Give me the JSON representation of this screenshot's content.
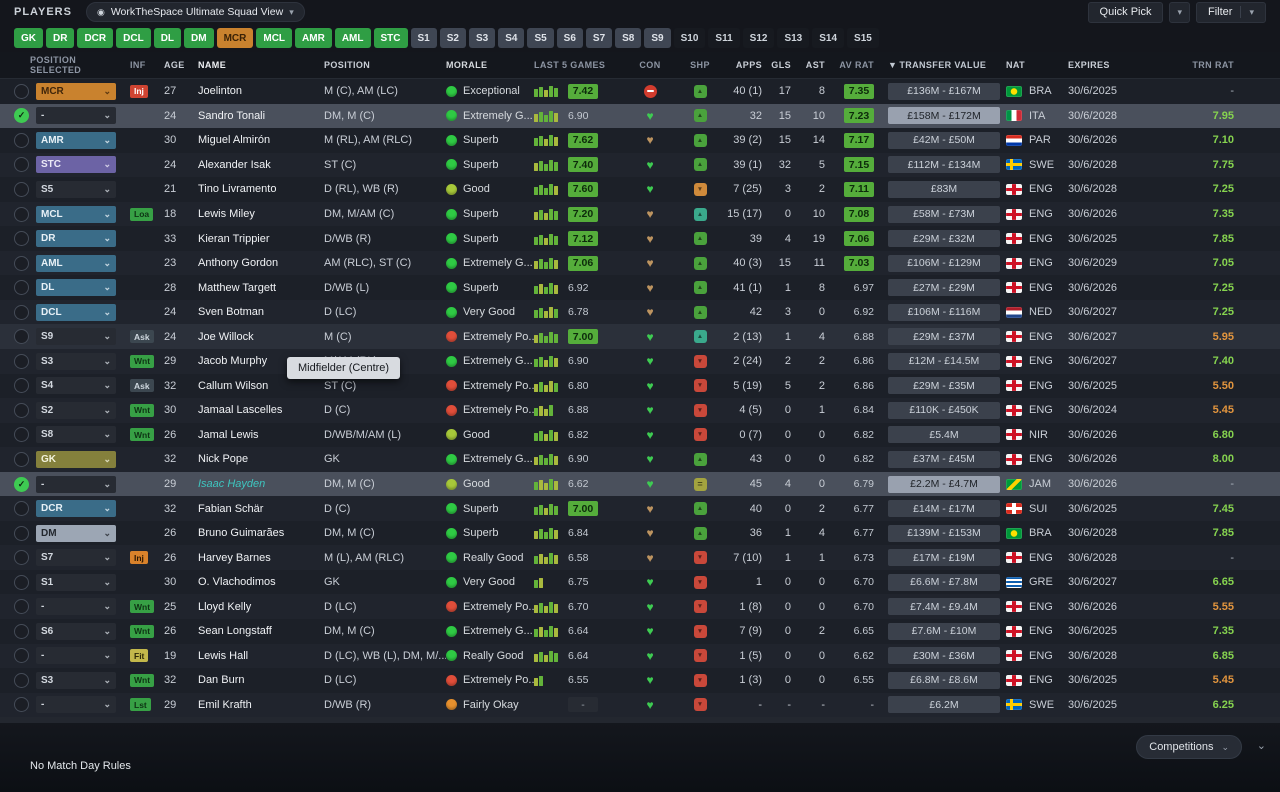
{
  "header": {
    "players_label": "PLAYERS",
    "view_name": "WorkTheSpace Ultimate Squad View",
    "quick_pick_label": "Quick Pick",
    "filter_label": "Filter"
  },
  "position_filters": [
    {
      "label": "GK",
      "style": "green"
    },
    {
      "label": "DR",
      "style": "green"
    },
    {
      "label": "DCR",
      "style": "green"
    },
    {
      "label": "DCL",
      "style": "green"
    },
    {
      "label": "DL",
      "style": "green"
    },
    {
      "label": "DM",
      "style": "green"
    },
    {
      "label": "MCR",
      "style": "active"
    },
    {
      "label": "MCL",
      "style": "green"
    },
    {
      "label": "AMR",
      "style": "green"
    },
    {
      "label": "AML",
      "style": "green"
    },
    {
      "label": "STC",
      "style": "green"
    },
    {
      "label": "S1",
      "style": "gray"
    },
    {
      "label": "S2",
      "style": "gray"
    },
    {
      "label": "S3",
      "style": "gray"
    },
    {
      "label": "S4",
      "style": "gray"
    },
    {
      "label": "S5",
      "style": "gray"
    },
    {
      "label": "S6",
      "style": "gray"
    },
    {
      "label": "S7",
      "style": "gray"
    },
    {
      "label": "S8",
      "style": "gray"
    },
    {
      "label": "S9",
      "style": "gray"
    },
    {
      "label": "S10",
      "style": "dark"
    },
    {
      "label": "S11",
      "style": "dark"
    },
    {
      "label": "S12",
      "style": "dark"
    },
    {
      "label": "S13",
      "style": "dark"
    },
    {
      "label": "S14",
      "style": "dark"
    },
    {
      "label": "S15",
      "style": "dark"
    }
  ],
  "table": {
    "sort_indicator": "▼",
    "columns": {
      "pos_selected": "POSITION SELECTED",
      "inf": "INF",
      "age": "AGE",
      "name": "NAME",
      "position": "POSITION",
      "morale": "MORALE",
      "last5": "LAST 5 GAMES",
      "con": "CON",
      "shp": "SHP",
      "apps": "APPS",
      "gls": "GLS",
      "ast": "AST",
      "avrat": "AV RAT",
      "value": "TRANSFER VALUE",
      "nat": "NAT",
      "expires": "EXPIRES",
      "trn": "TRN RAT"
    }
  },
  "tooltip": {
    "text": "Midfielder (Centre)"
  },
  "footer": {
    "left_text": "No Match Day Rules",
    "competitions_label": "Competitions"
  },
  "players": [
    {
      "sel": false,
      "slot": "MCR",
      "slotStyle": "orange",
      "inf": "Inj",
      "infStyle": "red",
      "age": "27",
      "name": "Joelinton",
      "nameStyle": "",
      "pos": "M (C), AM (LC)",
      "morale": "Exceptional",
      "moraleColor": "green",
      "bars": "ggygg",
      "rating": "7.42",
      "ratingStyle": "badge",
      "con": "injured",
      "shp": "upg",
      "apps": "40 (1)",
      "gls": "17",
      "ast": "8",
      "av": "7.35",
      "avStyle": "badge",
      "value": "£136M - £167M",
      "nat": "BRA",
      "expires": "30/6/2025",
      "trn": "-",
      "trnStyle": "dash",
      "row": "normal"
    },
    {
      "sel": true,
      "slot": "-",
      "slotStyle": "dark",
      "inf": "",
      "infStyle": "",
      "age": "24",
      "name": "Sandro Tonali",
      "nameStyle": "",
      "pos": "DM, M (C)",
      "morale": "Extremely G...",
      "moraleColor": "green",
      "bars": "ygggy",
      "rating": "6.90",
      "ratingStyle": "plain",
      "con": "green",
      "shp": "upg",
      "apps": "32",
      "gls": "15",
      "ast": "10",
      "av": "7.23",
      "avStyle": "badge",
      "value": "£158M - £172M",
      "nat": "ITA",
      "expires": "30/6/2028",
      "trn": "7.95",
      "trnStyle": "good",
      "row": "selected"
    },
    {
      "sel": false,
      "slot": "AMR",
      "slotStyle": "blue",
      "inf": "",
      "infStyle": "",
      "age": "30",
      "name": "Miguel Almirón",
      "nameStyle": "",
      "pos": "M (RL), AM (RLC)",
      "morale": "Superb",
      "moraleColor": "green",
      "bars": "ggygy",
      "rating": "7.62",
      "ratingStyle": "badge",
      "con": "bronze",
      "shp": "upg",
      "apps": "39 (2)",
      "gls": "15",
      "ast": "14",
      "av": "7.17",
      "avStyle": "badge",
      "value": "£42M - £50M",
      "nat": "PAR",
      "expires": "30/6/2026",
      "trn": "7.10",
      "trnStyle": "good",
      "row": "normal"
    },
    {
      "sel": false,
      "slot": "STC",
      "slotStyle": "purple",
      "inf": "",
      "infStyle": "",
      "age": "24",
      "name": "Alexander Isak",
      "nameStyle": "",
      "pos": "ST (C)",
      "morale": "Superb",
      "moraleColor": "green",
      "bars": "ygggg",
      "rating": "7.40",
      "ratingStyle": "badge",
      "con": "green",
      "shp": "upg",
      "apps": "39 (1)",
      "gls": "32",
      "ast": "5",
      "av": "7.15",
      "avStyle": "badge",
      "value": "£112M - £134M",
      "nat": "SWE",
      "expires": "30/6/2028",
      "trn": "7.75",
      "trnStyle": "good",
      "row": "normal"
    },
    {
      "sel": false,
      "slot": "S5",
      "slotStyle": "dark",
      "inf": "",
      "infStyle": "",
      "age": "21",
      "name": "Tino Livramento",
      "nameStyle": "",
      "pos": "D (RL), WB (R)",
      "morale": "Good",
      "moraleColor": "yellowgreen",
      "bars": "ggggy",
      "rating": "7.60",
      "ratingStyle": "badge",
      "con": "green",
      "shp": "dno",
      "apps": "7 (25)",
      "gls": "3",
      "ast": "2",
      "av": "7.11",
      "avStyle": "badge",
      "value": "£83M",
      "nat": "ENG",
      "expires": "30/6/2028",
      "trn": "7.25",
      "trnStyle": "good",
      "row": "normal"
    },
    {
      "sel": false,
      "slot": "MCL",
      "slotStyle": "blue",
      "inf": "Loa",
      "infStyle": "green",
      "age": "18",
      "name": "Lewis Miley",
      "nameStyle": "",
      "pos": "DM, M/AM (C)",
      "morale": "Superb",
      "moraleColor": "green",
      "bars": "ygygg",
      "rating": "7.20",
      "ratingStyle": "badge",
      "con": "bronze",
      "shp": "upt",
      "apps": "15 (17)",
      "gls": "0",
      "ast": "10",
      "av": "7.08",
      "avStyle": "badge",
      "value": "£58M - £73M",
      "nat": "ENG",
      "expires": "30/6/2026",
      "trn": "7.35",
      "trnStyle": "good",
      "row": "normal"
    },
    {
      "sel": false,
      "slot": "DR",
      "slotStyle": "blue",
      "inf": "",
      "infStyle": "",
      "age": "33",
      "name": "Kieran Trippier",
      "nameStyle": "",
      "pos": "D/WB (R)",
      "morale": "Superb",
      "moraleColor": "green",
      "bars": "ggygg",
      "rating": "7.12",
      "ratingStyle": "badge",
      "con": "bronze",
      "shp": "upg",
      "apps": "39",
      "gls": "4",
      "ast": "19",
      "av": "7.06",
      "avStyle": "badge",
      "value": "£29M - £32M",
      "nat": "ENG",
      "expires": "30/6/2025",
      "trn": "7.85",
      "trnStyle": "good",
      "row": "normal"
    },
    {
      "sel": false,
      "slot": "AML",
      "slotStyle": "blue",
      "inf": "",
      "infStyle": "",
      "age": "23",
      "name": "Anthony Gordon",
      "nameStyle": "",
      "pos": "AM (RLC), ST (C)",
      "morale": "Extremely G...",
      "moraleColor": "green",
      "bars": "ygggy",
      "rating": "7.06",
      "ratingStyle": "badge",
      "con": "bronze",
      "shp": "upg",
      "apps": "40 (3)",
      "gls": "15",
      "ast": "11",
      "av": "7.03",
      "avStyle": "badge",
      "value": "£106M - £129M",
      "nat": "ENG",
      "expires": "30/6/2029",
      "trn": "7.05",
      "trnStyle": "good",
      "row": "normal"
    },
    {
      "sel": false,
      "slot": "DL",
      "slotStyle": "blue",
      "inf": "",
      "infStyle": "",
      "age": "28",
      "name": "Matthew Targett",
      "nameStyle": "",
      "pos": "D/WB (L)",
      "morale": "Superb",
      "moraleColor": "green",
      "bars": "gyggy",
      "rating": "6.92",
      "ratingStyle": "plain",
      "con": "bronze",
      "shp": "upg",
      "apps": "41 (1)",
      "gls": "1",
      "ast": "8",
      "av": "6.97",
      "avStyle": "plain",
      "value": "£27M - £29M",
      "nat": "ENG",
      "expires": "30/6/2026",
      "trn": "7.25",
      "trnStyle": "good",
      "row": "normal"
    },
    {
      "sel": false,
      "slot": "DCL",
      "slotStyle": "blue",
      "inf": "",
      "infStyle": "",
      "age": "24",
      "name": "Sven Botman",
      "nameStyle": "",
      "pos": "D (LC)",
      "morale": "Very Good",
      "moraleColor": "green",
      "bars": "ggyyg",
      "rating": "6.78",
      "ratingStyle": "plain",
      "con": "bronze",
      "shp": "upg",
      "apps": "42",
      "gls": "3",
      "ast": "0",
      "av": "6.92",
      "avStyle": "plain",
      "value": "£106M - £116M",
      "nat": "NED",
      "expires": "30/6/2027",
      "trn": "7.25",
      "trnStyle": "good",
      "row": "normal"
    },
    {
      "sel": false,
      "slot": "S9",
      "slotStyle": "dark",
      "inf": "Ask",
      "infStyle": "darkb",
      "age": "24",
      "name": "Joe Willock",
      "nameStyle": "",
      "pos": "M (C)",
      "morale": "Extremely Po...",
      "moraleColor": "red",
      "bars": "ygggg",
      "rating": "7.00",
      "ratingStyle": "badge",
      "con": "green",
      "shp": "upt",
      "apps": "2 (13)",
      "gls": "1",
      "ast": "4",
      "av": "6.88",
      "avStyle": "plain",
      "value": "£29M - £37M",
      "nat": "ENG",
      "expires": "30/6/2027",
      "trn": "5.95",
      "trnStyle": "bad",
      "row": "soft"
    },
    {
      "sel": false,
      "slot": "S3",
      "slotStyle": "dark",
      "inf": "Wnt",
      "infStyle": "green",
      "age": "29",
      "name": "Jacob Murphy",
      "nameStyle": "",
      "pos": "M/AM (RL)",
      "morale": "Extremely G...",
      "moraleColor": "green",
      "bars": "ggygy",
      "rating": "6.90",
      "ratingStyle": "plain",
      "con": "green",
      "shp": "dnr",
      "apps": "2 (24)",
      "gls": "2",
      "ast": "2",
      "av": "6.86",
      "avStyle": "plain",
      "value": "£12M - £14.5M",
      "nat": "ENG",
      "expires": "30/6/2027",
      "trn": "7.40",
      "trnStyle": "good",
      "row": "normal"
    },
    {
      "sel": false,
      "slot": "S4",
      "slotStyle": "dark",
      "inf": "Ask",
      "infStyle": "darkb",
      "age": "32",
      "name": "Callum Wilson",
      "nameStyle": "",
      "pos": "ST (C)",
      "morale": "Extremely Po...",
      "moraleColor": "red",
      "bars": "ygyyg",
      "rating": "6.80",
      "ratingStyle": "plain",
      "con": "green",
      "shp": "dnr",
      "apps": "5 (19)",
      "gls": "5",
      "ast": "2",
      "av": "6.86",
      "avStyle": "plain",
      "value": "£29M - £35M",
      "nat": "ENG",
      "expires": "30/6/2025",
      "trn": "5.50",
      "trnStyle": "bad",
      "row": "normal"
    },
    {
      "sel": false,
      "slot": "S2",
      "slotStyle": "dark",
      "inf": "Wnt",
      "infStyle": "green",
      "age": "30",
      "name": "Jamaal Lascelles",
      "nameStyle": "",
      "pos": "D (C)",
      "morale": "Extremely Po...",
      "moraleColor": "red",
      "bars": "gyyg",
      "rating": "6.88",
      "ratingStyle": "plain",
      "con": "green",
      "shp": "dnr",
      "apps": "4 (5)",
      "gls": "0",
      "ast": "1",
      "av": "6.84",
      "avStyle": "plain",
      "value": "£110K - £450K",
      "nat": "ENG",
      "expires": "30/6/2024",
      "trn": "5.45",
      "trnStyle": "bad",
      "row": "normal"
    },
    {
      "sel": false,
      "slot": "S8",
      "slotStyle": "dark",
      "inf": "Wnt",
      "infStyle": "green",
      "age": "26",
      "name": "Jamal Lewis",
      "nameStyle": "",
      "pos": "D/WB/M/AM (L)",
      "morale": "Good",
      "moraleColor": "yellowgreen",
      "bars": "ggygy",
      "rating": "6.82",
      "ratingStyle": "plain",
      "con": "green",
      "shp": "dnr",
      "apps": "0 (7)",
      "gls": "0",
      "ast": "0",
      "av": "6.82",
      "avStyle": "plain",
      "value": "£5.4M",
      "nat": "NIR",
      "expires": "30/6/2026",
      "trn": "6.80",
      "trnStyle": "good",
      "row": "normal"
    },
    {
      "sel": false,
      "slot": "GK",
      "slotStyle": "olive",
      "inf": "",
      "infStyle": "",
      "age": "32",
      "name": "Nick Pope",
      "nameStyle": "",
      "pos": "GK",
      "morale": "Extremely G...",
      "moraleColor": "green",
      "bars": "ygggy",
      "rating": "6.90",
      "ratingStyle": "plain",
      "con": "green",
      "shp": "upg",
      "apps": "43",
      "gls": "0",
      "ast": "0",
      "av": "6.82",
      "avStyle": "plain",
      "value": "£37M - £45M",
      "nat": "ENG",
      "expires": "30/6/2026",
      "trn": "8.00",
      "trnStyle": "good",
      "row": "normal"
    },
    {
      "sel": true,
      "slot": "-",
      "slotStyle": "dark",
      "inf": "",
      "infStyle": "",
      "age": "29",
      "name": "Isaac Hayden",
      "nameStyle": "name-loan",
      "pos": "DM, M (C)",
      "morale": "Good",
      "moraleColor": "yellowgreen",
      "bars": "gyygy",
      "rating": "6.62",
      "ratingStyle": "plain",
      "con": "green",
      "shp": "eq",
      "apps": "45",
      "gls": "4",
      "ast": "0",
      "av": "6.79",
      "avStyle": "plain",
      "value": "£2.2M - £4.7M",
      "nat": "JAM",
      "expires": "30/6/2026",
      "trn": "-",
      "trnStyle": "dash",
      "row": "selected"
    },
    {
      "sel": false,
      "slot": "DCR",
      "slotStyle": "blue",
      "inf": "",
      "infStyle": "",
      "age": "32",
      "name": "Fabian Schär",
      "nameStyle": "",
      "pos": "D (C)",
      "morale": "Superb",
      "moraleColor": "green",
      "bars": "ggygg",
      "rating": "7.00",
      "ratingStyle": "badge",
      "con": "bronze",
      "shp": "upg",
      "apps": "40",
      "gls": "0",
      "ast": "2",
      "av": "6.77",
      "avStyle": "plain",
      "value": "£14M - £17M",
      "nat": "SUI",
      "expires": "30/6/2025",
      "trn": "7.45",
      "trnStyle": "good",
      "row": "normal"
    },
    {
      "sel": false,
      "slot": "DM",
      "slotStyle": "light",
      "inf": "",
      "infStyle": "",
      "age": "26",
      "name": "Bruno Guimarães",
      "nameStyle": "",
      "pos": "DM, M (C)",
      "morale": "Superb",
      "moraleColor": "green",
      "bars": "ygggy",
      "rating": "6.84",
      "ratingStyle": "plain",
      "con": "bronze",
      "shp": "upg",
      "apps": "36",
      "gls": "1",
      "ast": "4",
      "av": "6.77",
      "avStyle": "plain",
      "value": "£139M - £153M",
      "nat": "BRA",
      "expires": "30/6/2028",
      "trn": "7.85",
      "trnStyle": "good",
      "row": "normal"
    },
    {
      "sel": false,
      "slot": "S7",
      "slotStyle": "dark",
      "inf": "Inj",
      "infStyle": "orange",
      "age": "26",
      "name": "Harvey Barnes",
      "nameStyle": "",
      "pos": "M (L), AM (RLC)",
      "morale": "Really Good",
      "moraleColor": "green",
      "bars": "gyygy",
      "rating": "6.58",
      "ratingStyle": "plain",
      "con": "bronze",
      "shp": "dnr",
      "apps": "7 (10)",
      "gls": "1",
      "ast": "1",
      "av": "6.73",
      "avStyle": "plain",
      "value": "£17M - £19M",
      "nat": "ENG",
      "expires": "30/6/2028",
      "trn": "-",
      "trnStyle": "dash",
      "row": "normal"
    },
    {
      "sel": false,
      "slot": "S1",
      "slotStyle": "dark",
      "inf": "",
      "infStyle": "",
      "age": "30",
      "name": "O. Vlachodimos",
      "nameStyle": "",
      "pos": "GK",
      "morale": "Very Good",
      "moraleColor": "green",
      "bars": "gy",
      "rating": "6.75",
      "ratingStyle": "plain",
      "con": "green",
      "shp": "dnr",
      "apps": "1",
      "gls": "0",
      "ast": "0",
      "av": "6.70",
      "avStyle": "plain",
      "value": "£6.6M - £7.8M",
      "nat": "GRE",
      "expires": "30/6/2027",
      "trn": "6.65",
      "trnStyle": "good",
      "row": "normal"
    },
    {
      "sel": false,
      "slot": "-",
      "slotStyle": "dark",
      "inf": "Wnt",
      "infStyle": "green",
      "age": "25",
      "name": "Lloyd Kelly",
      "nameStyle": "",
      "pos": "D (LC)",
      "morale": "Extremely Po...",
      "moraleColor": "red",
      "bars": "ygygy",
      "rating": "6.70",
      "ratingStyle": "plain",
      "con": "green",
      "shp": "dnr",
      "apps": "1 (8)",
      "gls": "0",
      "ast": "0",
      "av": "6.70",
      "avStyle": "plain",
      "value": "£7.4M - £9.4M",
      "nat": "ENG",
      "expires": "30/6/2026",
      "trn": "5.55",
      "trnStyle": "bad",
      "row": "normal"
    },
    {
      "sel": false,
      "slot": "S6",
      "slotStyle": "dark",
      "inf": "Wnt",
      "infStyle": "green",
      "age": "26",
      "name": "Sean Longstaff",
      "nameStyle": "",
      "pos": "DM, M (C)",
      "morale": "Extremely G...",
      "moraleColor": "green",
      "bars": "gyggy",
      "rating": "6.64",
      "ratingStyle": "plain",
      "con": "green",
      "shp": "dnr",
      "apps": "7 (9)",
      "gls": "0",
      "ast": "2",
      "av": "6.65",
      "avStyle": "plain",
      "value": "£7.6M - £10M",
      "nat": "ENG",
      "expires": "30/6/2025",
      "trn": "7.35",
      "trnStyle": "good",
      "row": "normal"
    },
    {
      "sel": false,
      "slot": "-",
      "slotStyle": "dark",
      "inf": "Fit",
      "infStyle": "yellow",
      "age": "19",
      "name": "Lewis Hall",
      "nameStyle": "",
      "pos": "D (LC), WB (L), DM, M/...",
      "morale": "Really Good",
      "moraleColor": "green",
      "bars": "ygygg",
      "rating": "6.64",
      "ratingStyle": "plain",
      "con": "green",
      "shp": "dnr",
      "apps": "1 (5)",
      "gls": "0",
      "ast": "0",
      "av": "6.62",
      "avStyle": "plain",
      "value": "£30M - £36M",
      "nat": "ENG",
      "expires": "30/6/2028",
      "trn": "6.85",
      "trnStyle": "good",
      "row": "normal"
    },
    {
      "sel": false,
      "slot": "S3",
      "slotStyle": "dark",
      "inf": "Wnt",
      "infStyle": "green",
      "age": "32",
      "name": "Dan Burn",
      "nameStyle": "",
      "pos": "D (LC)",
      "morale": "Extremely Po...",
      "moraleColor": "red",
      "bars": "yg",
      "rating": "6.55",
      "ratingStyle": "plain",
      "con": "green",
      "shp": "dnr",
      "apps": "1 (3)",
      "gls": "0",
      "ast": "0",
      "av": "6.55",
      "avStyle": "plain",
      "value": "£6.8M - £8.6M",
      "nat": "ENG",
      "expires": "30/6/2025",
      "trn": "5.45",
      "trnStyle": "bad",
      "row": "normal"
    },
    {
      "sel": false,
      "slot": "-",
      "slotStyle": "dark",
      "inf": "Lst",
      "infStyle": "green",
      "age": "29",
      "name": "Emil Krafth",
      "nameStyle": "",
      "pos": "D/WB (R)",
      "morale": "Fairly Okay",
      "moraleColor": "orange",
      "bars": "",
      "rating": "-",
      "ratingStyle": "dash",
      "con": "green",
      "shp": "dnr",
      "apps": "-",
      "gls": "-",
      "ast": "-",
      "av": "-",
      "avStyle": "plain",
      "value": "£6.2M",
      "nat": "SWE",
      "expires": "30/6/2025",
      "trn": "6.25",
      "trnStyle": "good",
      "row": "normal"
    }
  ]
}
